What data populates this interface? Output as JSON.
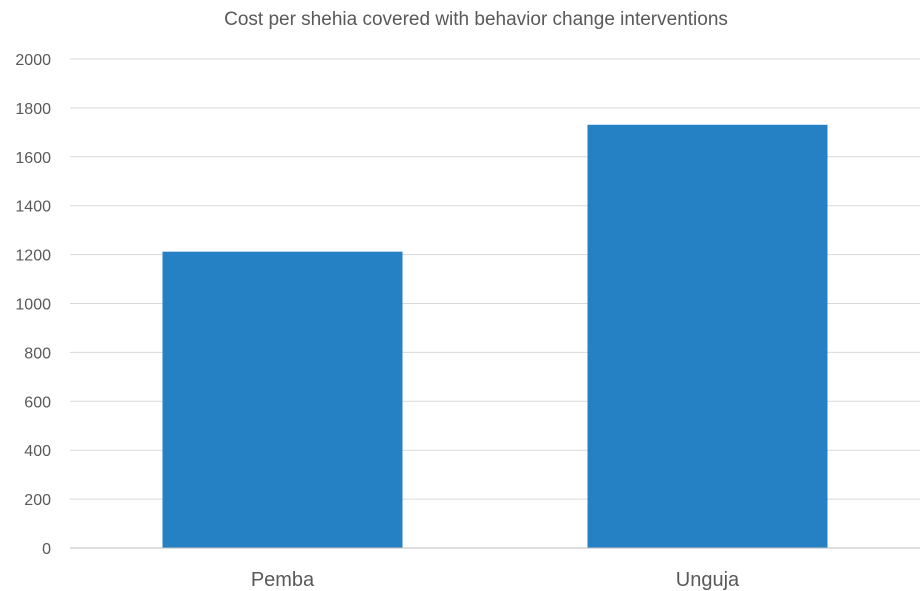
{
  "chart_data": {
    "type": "bar",
    "title": "Cost per shehia covered with behavior change interventions",
    "xlabel": "",
    "ylabel": "",
    "categories": [
      "Pemba",
      "Unguja"
    ],
    "values": [
      1212,
      1731
    ],
    "ylim": [
      0,
      2000
    ],
    "yticks": [
      0,
      200,
      400,
      600,
      800,
      1000,
      1200,
      1400,
      1600,
      1800,
      2000
    ],
    "grid": true,
    "legend": "none",
    "bar_color": "#2581c4"
  }
}
